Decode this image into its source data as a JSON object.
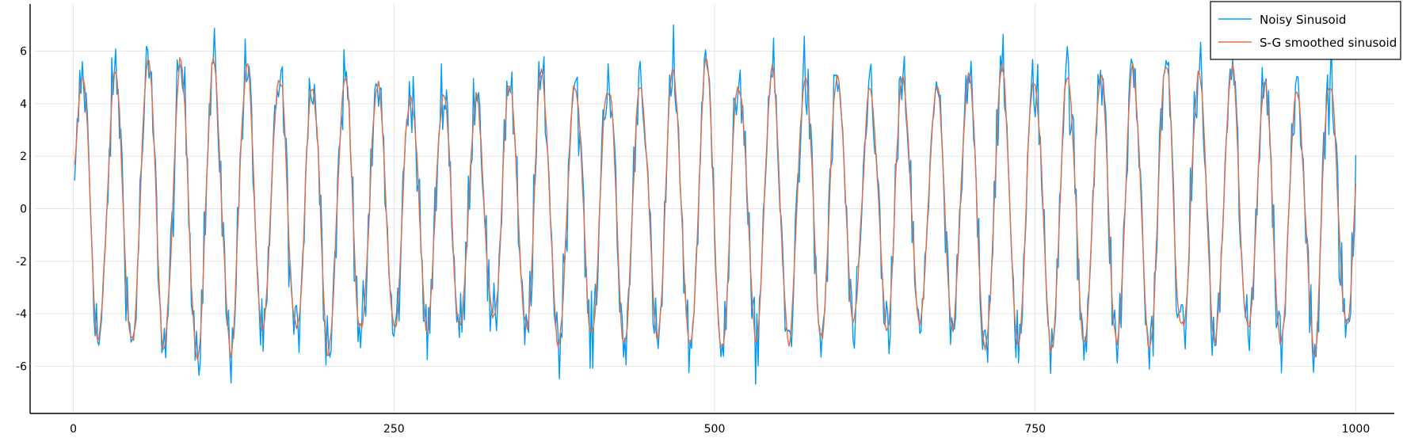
{
  "chart_data": {
    "type": "line",
    "title": "",
    "xlabel": "",
    "ylabel": "",
    "xlim": [
      -30,
      1030
    ],
    "ylim": [
      -7.8,
      7.8
    ],
    "x_ticks": [
      0,
      250,
      500,
      750,
      1000
    ],
    "x_tick_labels": [
      "0",
      "250",
      "500",
      "750",
      "1000"
    ],
    "y_ticks": [
      -6,
      -4,
      -2,
      0,
      2,
      4,
      6
    ],
    "y_tick_labels": [
      "-6",
      "-4",
      "-2",
      "0",
      "2",
      "4",
      "6"
    ],
    "grid": true,
    "legend_position": "top-right",
    "x_start": 1,
    "x_end": 1000,
    "x_step": 1,
    "signal_description": "sinusoid, amplitude ~5, period ~25.6 samples (~39 cycles over 1000 samples)",
    "amplitude": 5,
    "period": 25.6,
    "noise_amplitude": 1.1,
    "x_sampled": [
      1,
      8,
      14,
      21,
      27,
      33,
      40,
      46,
      53,
      59,
      65,
      72,
      78,
      85,
      91,
      97,
      104,
      110,
      117,
      123,
      129
    ],
    "smoothed_sampled": [
      0.3,
      5.0,
      1.2,
      -4.9,
      -2.0,
      5.3,
      2.5,
      -4.2,
      -3.0,
      5.1,
      3.6,
      -5.2,
      -2.3,
      5.4,
      0.5,
      -5.0,
      -1.8,
      5.3,
      2.2,
      -4.6,
      -3.5
    ],
    "series": [
      {
        "name": "Noisy Sinusoid",
        "color": "#009af9"
      },
      {
        "name": "S-G smoothed sinusoid",
        "color": "#e26f46"
      }
    ],
    "grid_color": "#e5e5e5",
    "axis_color": "#000000"
  }
}
